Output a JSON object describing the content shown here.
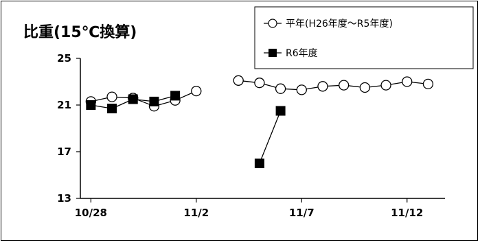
{
  "chart_data": {
    "type": "line",
    "title": "比重(15℃換算)",
    "xlabel": "",
    "ylabel": "",
    "ylim": [
      13,
      25
    ],
    "yticks": [
      13,
      17,
      21,
      25
    ],
    "x_tick_labels": [
      "10/28",
      "11/2",
      "11/7",
      "11/12"
    ],
    "x_tick_positions": [
      "10/28",
      "11/2",
      "11/7",
      "11/12"
    ],
    "xlim": [
      "10/27",
      "11/13"
    ],
    "x": [
      "10/28",
      "10/29",
      "10/30",
      "10/31",
      "11/1",
      "11/2",
      "11/3",
      "11/4",
      "11/5",
      "11/6",
      "11/7",
      "11/8",
      "11/9",
      "11/10",
      "11/11",
      "11/12",
      "11/13"
    ],
    "series": [
      {
        "name": "平年(H26年度～R5年度)",
        "marker": "open-circle",
        "color": "#000000",
        "values": [
          21.3,
          21.7,
          21.6,
          20.9,
          21.4,
          22.2,
          null,
          23.1,
          22.9,
          22.4,
          22.3,
          22.6,
          22.7,
          22.5,
          22.7,
          23.0,
          22.8
        ]
      },
      {
        "name": "R6年度",
        "marker": "filled-square",
        "color": "#000000",
        "values": [
          21.0,
          20.7,
          21.5,
          21.3,
          21.8,
          null,
          null,
          null,
          16.0,
          20.5,
          null,
          null,
          null,
          null,
          null,
          null,
          null
        ]
      }
    ],
    "legend": "top-right",
    "grid": false
  }
}
